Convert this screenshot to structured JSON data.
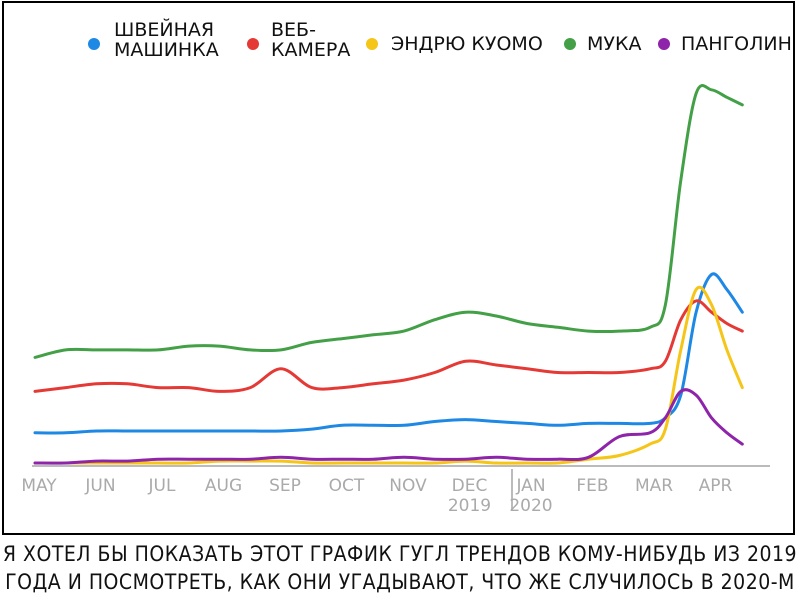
{
  "chart_data": {
    "type": "line",
    "title": "",
    "xlabel": "",
    "ylabel": "",
    "grid": false,
    "legend_position": "top",
    "ylim": [
      0,
      100
    ],
    "x_ticks": [
      {
        "label": "MAY",
        "year": ""
      },
      {
        "label": "JUN",
        "year": ""
      },
      {
        "label": "JUL",
        "year": ""
      },
      {
        "label": "AUG",
        "year": ""
      },
      {
        "label": "SEP",
        "year": ""
      },
      {
        "label": "OCT",
        "year": ""
      },
      {
        "label": "NOV",
        "year": ""
      },
      {
        "label": "DEC",
        "year": "2019"
      },
      {
        "label": "JAN",
        "year": "2020"
      },
      {
        "label": "FEB",
        "year": ""
      },
      {
        "label": "MAR",
        "year": ""
      },
      {
        "label": "APR",
        "year": ""
      }
    ],
    "x": [
      0,
      0.5,
      1,
      1.5,
      2,
      2.5,
      3,
      3.5,
      4,
      4.5,
      5,
      5.5,
      6,
      6.5,
      7,
      7.5,
      8,
      8.5,
      9,
      9.5,
      10,
      10.25,
      10.5,
      10.75,
      11,
      11.25,
      11.5
    ],
    "series": [
      {
        "name": "ШВЕЙНАЯ МАШИНКА",
        "color": "#1e88e5",
        "values": [
          8,
          8,
          8.5,
          8.5,
          8.5,
          8.5,
          8.5,
          8.5,
          8.5,
          9,
          10,
          10,
          10,
          11,
          11.5,
          11,
          10.5,
          10,
          10.5,
          10.5,
          10.5,
          12,
          18,
          40,
          50,
          46,
          40
        ]
      },
      {
        "name": "ВЕБ-КАМЕРА",
        "color": "#e53935",
        "values": [
          19,
          20,
          21,
          21,
          20,
          20,
          19,
          20,
          25,
          20,
          20,
          21,
          22,
          24,
          27,
          26,
          25,
          24,
          24,
          24,
          25,
          27,
          38,
          43,
          40,
          37,
          35
        ]
      },
      {
        "name": "ЭНДРЮ КУОМО",
        "color": "#f5c518",
        "values": [
          0,
          0,
          0,
          0,
          0,
          0,
          0.5,
          0.5,
          0.5,
          0,
          0,
          0,
          0,
          0,
          0.5,
          0,
          0,
          0,
          1,
          2,
          5,
          9,
          30,
          46,
          42,
          30,
          20
        ]
      },
      {
        "name": "МУКА",
        "color": "#43a047",
        "values": [
          28,
          30,
          30,
          30,
          30,
          31,
          31,
          30,
          30,
          32,
          33,
          34,
          35,
          38,
          40,
          39,
          37,
          36,
          35,
          35,
          36,
          42,
          75,
          98,
          99,
          97,
          95
        ]
      },
      {
        "name": "ПАНГОЛИН",
        "color": "#8e24aa",
        "values": [
          0,
          0,
          0.5,
          0.5,
          1,
          1,
          1,
          1,
          1.5,
          1,
          1,
          1,
          1.5,
          1,
          1,
          1.5,
          1,
          1,
          1.5,
          7,
          8,
          12,
          19,
          18,
          12,
          8,
          5
        ]
      }
    ]
  },
  "legend": [
    {
      "lines": [
        "ШВЕЙНАЯ",
        "МАШИНКА"
      ],
      "color": "#1e88e5"
    },
    {
      "lines": [
        "ВЕБ-",
        "КАМЕРА"
      ],
      "color": "#e53935"
    },
    {
      "lines": [
        "ЭНДРЮ КУОМО"
      ],
      "color": "#f5c518"
    },
    {
      "lines": [
        "МУКА"
      ],
      "color": "#43a047"
    },
    {
      "lines": [
        "ПАНГОЛИН"
      ],
      "color": "#8e24aa"
    }
  ],
  "caption": {
    "line1": "Я хотел бы показать этот график Гугл трендов кому-нибудь из 2019",
    "line2": "года и посмотреть, как они угадывают, что же случилось в 2020-м"
  }
}
